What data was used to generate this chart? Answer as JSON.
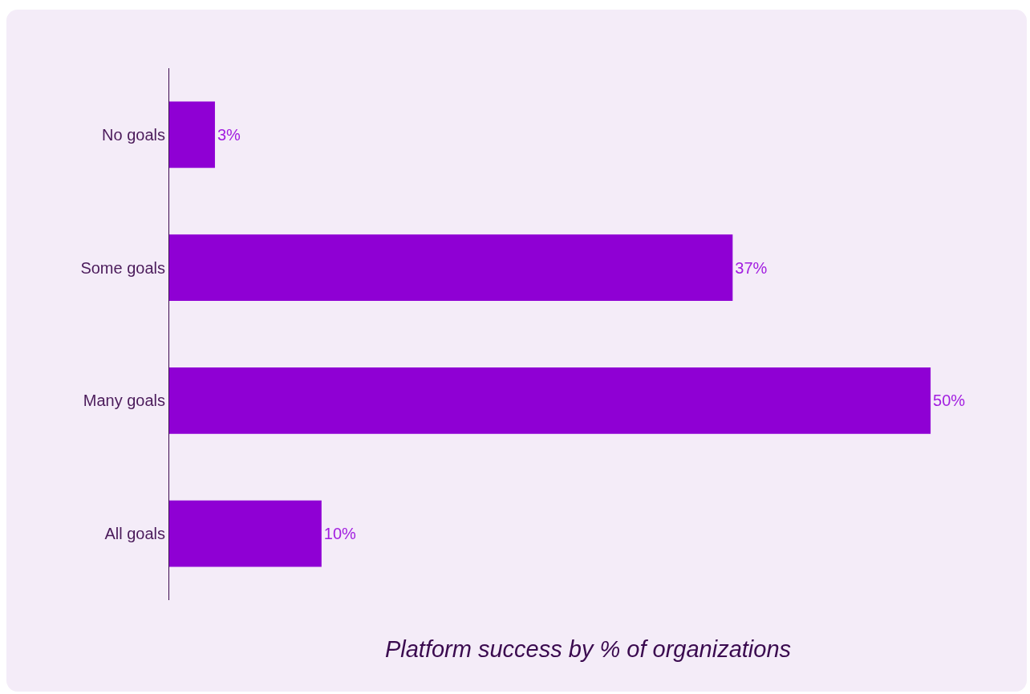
{
  "chart_data": {
    "type": "bar",
    "orientation": "horizontal",
    "xlabel": "Platform success by % of organizations",
    "categories": [
      "No goals",
      "Some goals",
      "Many goals",
      "All goals"
    ],
    "values": [
      3,
      37,
      50,
      10
    ],
    "value_labels": [
      "3%",
      "37%",
      "50%",
      "10%"
    ],
    "color": "#8f00d4",
    "tick_labels": "y"
  }
}
